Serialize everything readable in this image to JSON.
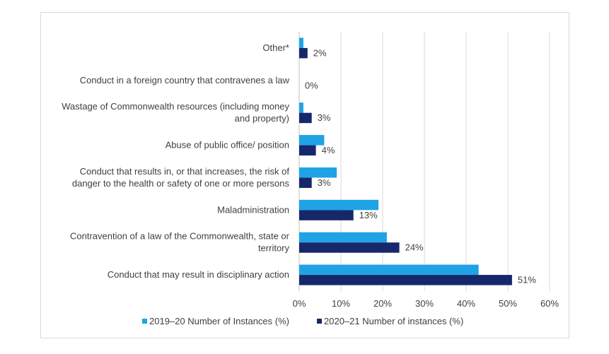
{
  "chart_data": {
    "type": "bar",
    "orientation": "horizontal",
    "categories": [
      [
        "Other*"
      ],
      [
        "Conduct in a foreign country that contravenes a law"
      ],
      [
        "Wastage of Commonwealth resources (including money",
        "and property)"
      ],
      [
        "Abuse of public office/ position"
      ],
      [
        "Conduct that results in, or that increases, the risk of",
        "danger to the health or safety of one or more persons"
      ],
      [
        "Maladministration"
      ],
      [
        "Contravention of a law of the Commonwealth, state or",
        "territory"
      ],
      [
        "Conduct that may result in disciplinary action"
      ]
    ],
    "series": [
      {
        "name": "2019–20 Number of Instances (%)",
        "color": "#1fa3e6",
        "values": [
          1,
          0,
          1,
          6,
          9,
          19,
          21,
          43
        ]
      },
      {
        "name": "2020–21 Number of instances (%)",
        "color": "#16286b",
        "values": [
          2,
          0,
          3,
          4,
          3,
          13,
          24,
          51
        ]
      }
    ],
    "data_labels": [
      "2%",
      "0%",
      "3%",
      "4%",
      "3%",
      "13%",
      "24%",
      "51%"
    ],
    "x_ticks": [
      "0%",
      "10%",
      "20%",
      "30%",
      "40%",
      "50%",
      "60%"
    ],
    "xlim": [
      0,
      60
    ],
    "grid": true,
    "legend_position": "bottom"
  }
}
